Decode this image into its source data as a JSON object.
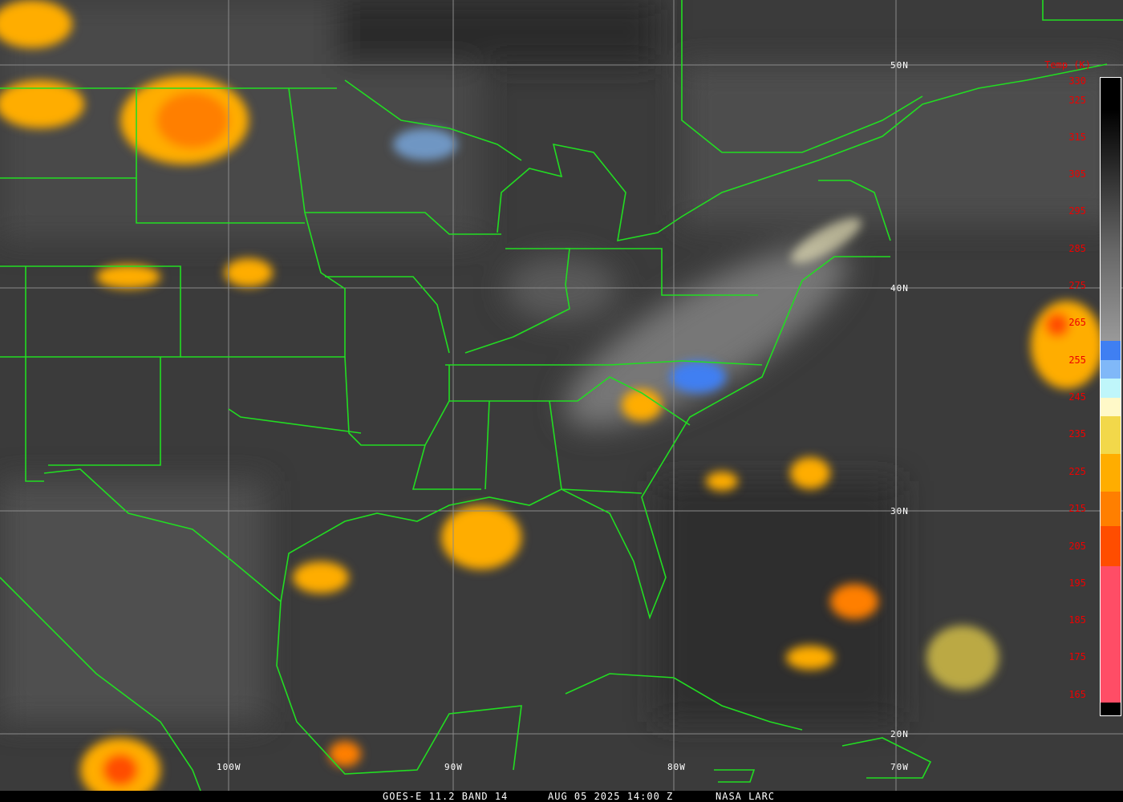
{
  "caption": {
    "satellite": "GOES-E 11.2 BAND 14",
    "datetime": "AUG 05 2025 14:00 Z",
    "source": "NASA LARC"
  },
  "colorbar": {
    "title": "Temp (K)",
    "labels": [
      "330",
      "325",
      "315",
      "305",
      "295",
      "285",
      "275",
      "265",
      "255",
      "245",
      "235",
      "225",
      "215",
      "205",
      "195",
      "185",
      "175",
      "165"
    ],
    "colors": {
      "blue": "#3f7ff2",
      "light_blue": "#80b8f8",
      "cyan": "#bff6fa",
      "pale_yellow": "#fff9c8",
      "yellow": "#f2d84a",
      "amber": "#ffad00",
      "orange": "#ff7f00",
      "red_orange": "#ff4d00",
      "pink": "#ff4d66"
    }
  },
  "grid": {
    "lat_labels": [
      "50N",
      "40N",
      "30N",
      "20N"
    ],
    "lon_labels": [
      "100W",
      "90W",
      "80W",
      "70W"
    ]
  },
  "border_color": "#22dd22"
}
